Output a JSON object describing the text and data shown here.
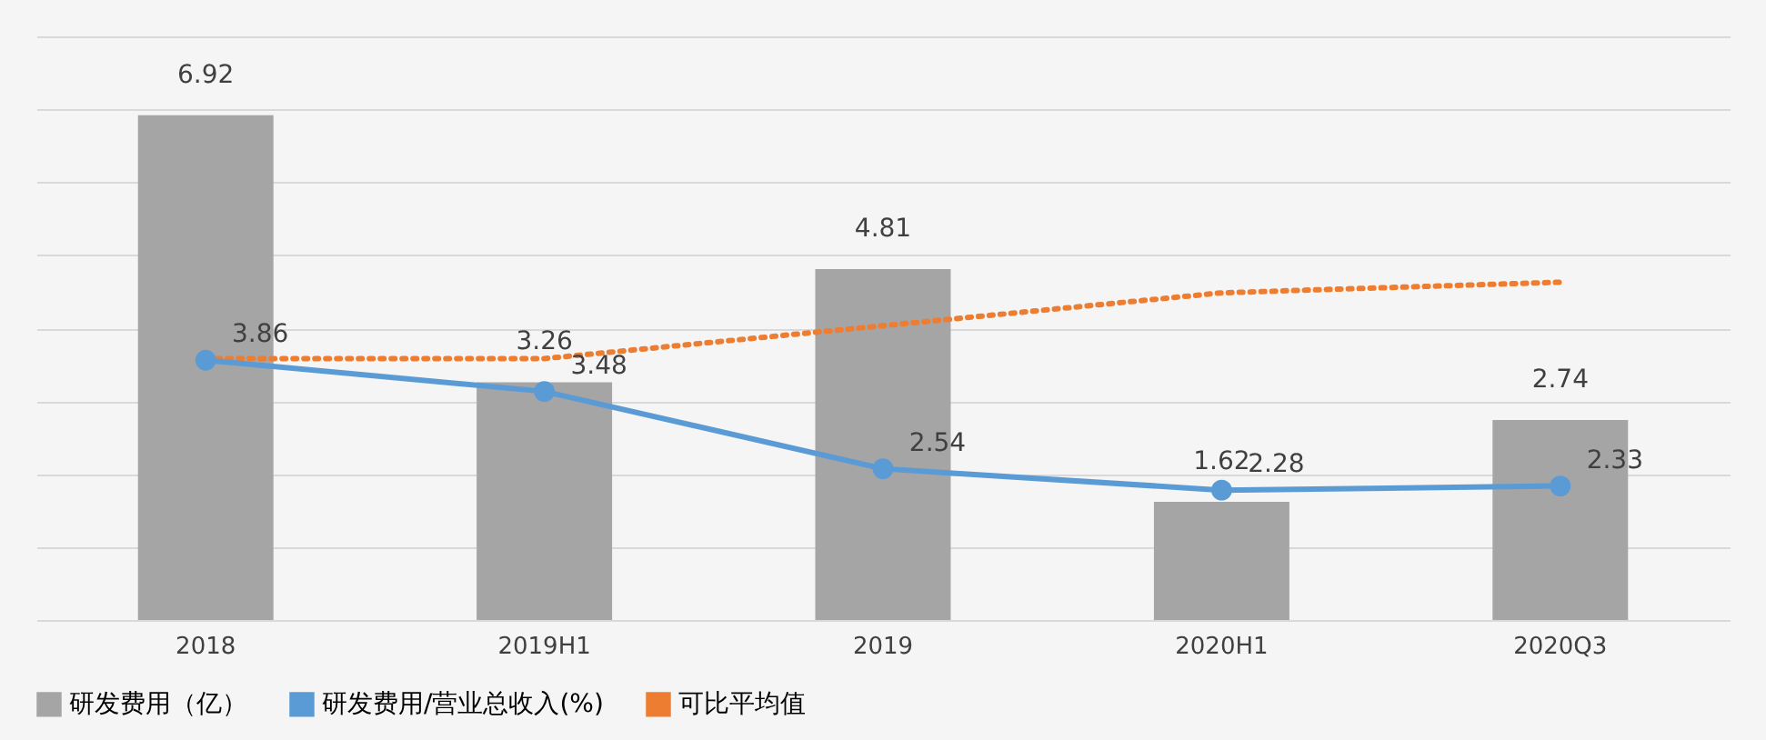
{
  "chart_data": {
    "type": "bar",
    "categories": [
      "2018",
      "2019H1",
      "2019",
      "2020H1",
      "2020Q3"
    ],
    "series": [
      {
        "name": "研发费用（亿）",
        "color": "#a5a5a5",
        "values": [
          6.92,
          3.26,
          4.81,
          1.62,
          2.74
        ],
        "value_labels": [
          "6.92",
          "3.26",
          "4.81",
          "1.62",
          "2.74"
        ]
      },
      {
        "name": "研发费用/营业总收入(%)",
        "type": "line",
        "axis": "y2",
        "color": "#5b9bd5",
        "marker": "circle",
        "line_style": "solid",
        "values": [
          3.86,
          3.48,
          2.54,
          2.28,
          2.33
        ],
        "value_labels": [
          "3.86",
          "3.48",
          "2.54",
          "2.28",
          "2.33"
        ]
      },
      {
        "name": "可比平均值",
        "type": "line",
        "axis": "y2",
        "color": "#ed7d31",
        "marker": "none",
        "line_style": "dotted",
        "values": [
          3.88,
          3.88,
          4.28,
          4.68,
          4.81
        ]
      }
    ],
    "ylim": [
      0,
      8
    ],
    "y2lim": [
      0.7,
      7.8
    ],
    "tick_labels": "x",
    "grid": "y",
    "legend": "bottom"
  }
}
